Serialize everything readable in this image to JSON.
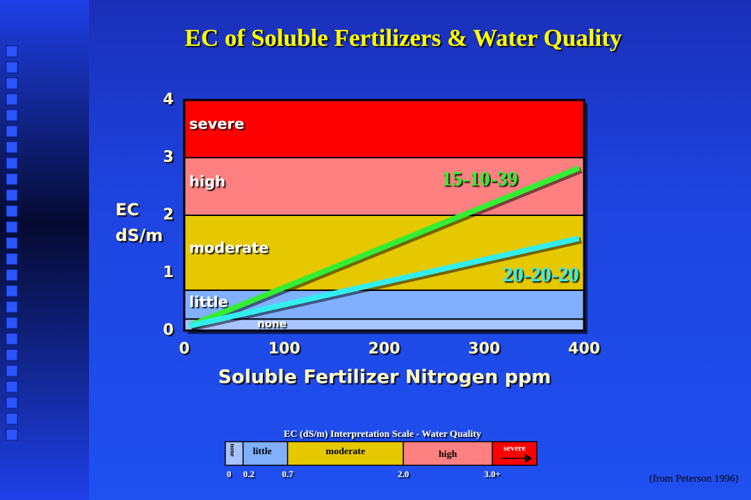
{
  "title": "EC of Soluble Fertilizers & Water Quality",
  "source": "(from Peterson 1996)",
  "chart_data": [
    {
      "type": "line",
      "xlabel": "Soluble Fertilizer Nitrogen ppm",
      "ylabel": [
        "EC",
        "dS/m"
      ],
      "xlim": [
        0,
        400
      ],
      "xticks": [
        0,
        100,
        200,
        300,
        400
      ],
      "ylim": [
        0,
        4
      ],
      "yticks": [
        0,
        1,
        2,
        3,
        4
      ],
      "bands": [
        {
          "name": "none",
          "range": [
            0,
            0.2
          ],
          "color": "#a8c4ff"
        },
        {
          "name": "little",
          "range": [
            0.2,
            0.7
          ],
          "color": "#80b0ff"
        },
        {
          "name": "moderate",
          "range": [
            0.7,
            2
          ],
          "color": "#e6c800"
        },
        {
          "name": "high",
          "range": [
            2,
            3
          ],
          "color": "#ff8080"
        },
        {
          "name": "severe",
          "range": [
            3,
            4
          ],
          "color": "#ff0000"
        }
      ],
      "series": [
        {
          "name": "15-10-39",
          "color": "#33ee33",
          "x": [
            5,
            395
          ],
          "values": [
            0.08,
            2.82
          ]
        },
        {
          "name": "20-20-20",
          "color": "#33eeee",
          "x": [
            5,
            395
          ],
          "values": [
            0.08,
            1.6
          ]
        }
      ]
    },
    {
      "type": "scale",
      "title": "EC (dS/m) Interpretation Scale - Water Quality",
      "xlim": [
        0,
        3.5
      ],
      "xticks": [
        0,
        0.2,
        0.7,
        {
          "value": 2,
          "label": "2.0"
        },
        {
          "value": 3,
          "label": "3.0+"
        }
      ],
      "segments": [
        {
          "name": "none",
          "color": "#a8c4ff"
        },
        {
          "name": "little",
          "color": "#80b0ff"
        },
        {
          "name": "moderate",
          "color": "#e6c800"
        },
        {
          "name": "high",
          "color": "#ff8080"
        },
        {
          "name": "severe",
          "color": "#ff0000"
        }
      ]
    }
  ]
}
